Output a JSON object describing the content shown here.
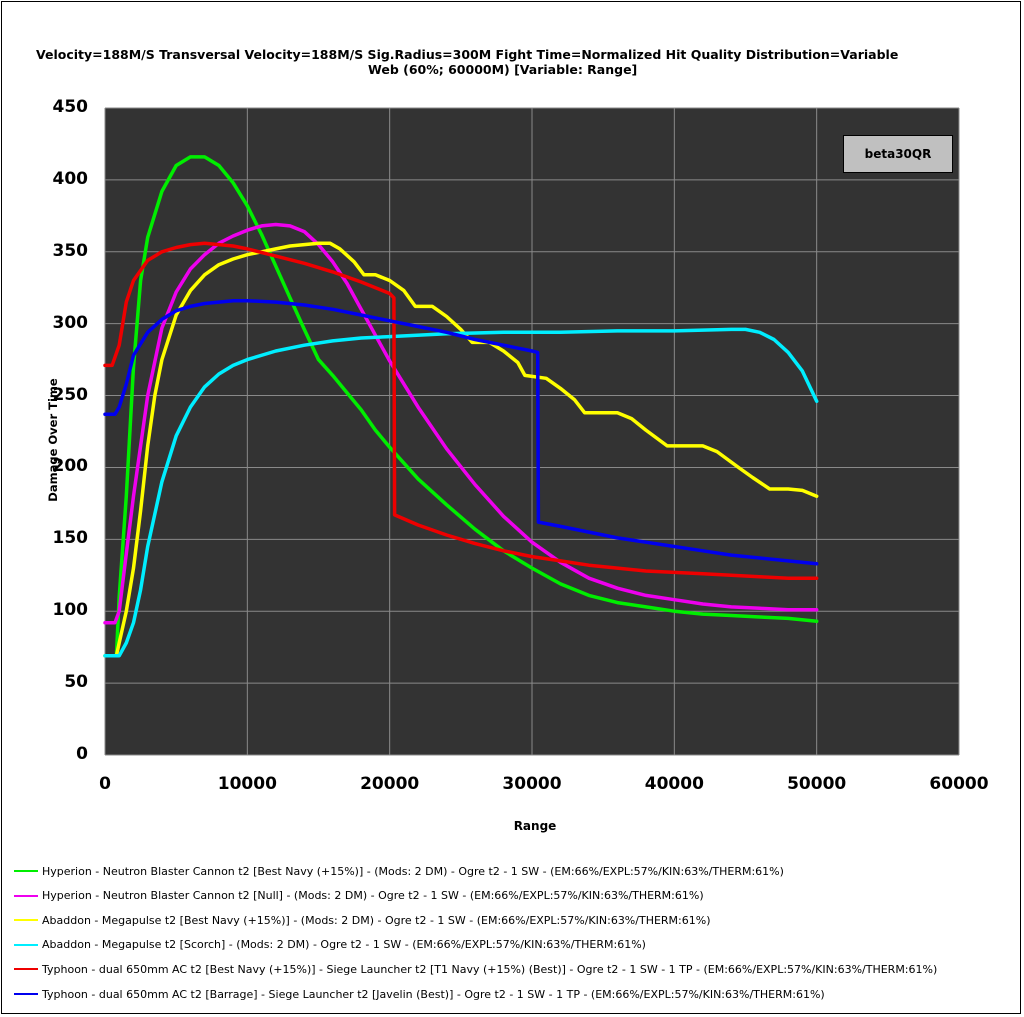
{
  "chart_data": {
    "type": "line",
    "subtitle_line1": "Velocity=188M/S     Transversal Velocity=188M/S     Sig.Radius=300M      Fight Time=Normalized      Hit Quality Distribution=Variable",
    "subtitle_line2": "Web (60%; 60000M)      [Variable: Range]",
    "xlabel": "Range",
    "ylabel": "Damage Over Time",
    "xlim": [
      0,
      60000
    ],
    "ylim": [
      0,
      450
    ],
    "x_ticks": [
      0,
      10000,
      20000,
      30000,
      40000,
      50000,
      60000
    ],
    "y_ticks": [
      0,
      50,
      100,
      150,
      200,
      250,
      300,
      350,
      400,
      450
    ],
    "annotation": "beta30QR",
    "grid": true,
    "legend_position": "bottom",
    "series": [
      {
        "name": "Hyperion - Neutron Blaster Cannon t2 [Best Navy (+15%)] - (Mods: 2 DM) - Ogre t2 - 1 SW - (EM:66%/EXPL:57%/KIN:63%/THERM:61%)",
        "color": "#00ee00",
        "points": [
          [
            0,
            69
          ],
          [
            800,
            69
          ],
          [
            1000,
            110
          ],
          [
            1500,
            180
          ],
          [
            2000,
            270
          ],
          [
            2500,
            330
          ],
          [
            3000,
            360
          ],
          [
            4000,
            392
          ],
          [
            5000,
            410
          ],
          [
            6000,
            416
          ],
          [
            7000,
            416
          ],
          [
            8000,
            410
          ],
          [
            9000,
            398
          ],
          [
            10000,
            382
          ],
          [
            11000,
            362
          ],
          [
            12000,
            340
          ],
          [
            13000,
            318
          ],
          [
            14000,
            296
          ],
          [
            15000,
            275
          ],
          [
            16000,
            264
          ],
          [
            17000,
            252
          ],
          [
            18000,
            240
          ],
          [
            19000,
            226
          ],
          [
            20000,
            214
          ],
          [
            22000,
            192
          ],
          [
            24000,
            174
          ],
          [
            26000,
            157
          ],
          [
            28000,
            142
          ],
          [
            30000,
            130
          ],
          [
            32000,
            119
          ],
          [
            34000,
            111
          ],
          [
            36000,
            106
          ],
          [
            38000,
            103
          ],
          [
            40000,
            100
          ],
          [
            42000,
            98
          ],
          [
            44000,
            97
          ],
          [
            46000,
            96
          ],
          [
            48000,
            95
          ],
          [
            50000,
            93
          ]
        ]
      },
      {
        "name": "Hyperion - Neutron Blaster Cannon t2 [Null] - (Mods: 2 DM) - Ogre t2 - 1 SW - (EM:66%/EXPL:57%/KIN:63%/THERM:61%)",
        "color": "#ee00ee",
        "points": [
          [
            0,
            92
          ],
          [
            700,
            92
          ],
          [
            1000,
            100
          ],
          [
            1500,
            140
          ],
          [
            2000,
            180
          ],
          [
            3000,
            250
          ],
          [
            4000,
            297
          ],
          [
            5000,
            322
          ],
          [
            6000,
            338
          ],
          [
            7000,
            348
          ],
          [
            8000,
            356
          ],
          [
            9000,
            361
          ],
          [
            10000,
            365
          ],
          [
            11000,
            368
          ],
          [
            12000,
            369
          ],
          [
            13000,
            368
          ],
          [
            14000,
            364
          ],
          [
            15000,
            355
          ],
          [
            16000,
            343
          ],
          [
            17000,
            328
          ],
          [
            18000,
            310
          ],
          [
            19000,
            292
          ],
          [
            20000,
            274
          ],
          [
            22000,
            242
          ],
          [
            24000,
            213
          ],
          [
            26000,
            188
          ],
          [
            28000,
            166
          ],
          [
            30000,
            148
          ],
          [
            32000,
            134
          ],
          [
            34000,
            123
          ],
          [
            36000,
            116
          ],
          [
            38000,
            111
          ],
          [
            40000,
            108
          ],
          [
            42000,
            105
          ],
          [
            44000,
            103
          ],
          [
            46000,
            102
          ],
          [
            48000,
            101
          ],
          [
            50000,
            101
          ]
        ]
      },
      {
        "name": "Abaddon - Megapulse t2 [Best Navy (+15%)] - (Mods: 2 DM) - Ogre t2 - 1 SW - (EM:66%/EXPL:57%/KIN:63%/THERM:61%)",
        "color": "#ffff00",
        "points": [
          [
            0,
            69
          ],
          [
            800,
            69
          ],
          [
            1000,
            78
          ],
          [
            1500,
            100
          ],
          [
            2000,
            130
          ],
          [
            2500,
            170
          ],
          [
            3000,
            215
          ],
          [
            3500,
            250
          ],
          [
            4000,
            275
          ],
          [
            5000,
            306
          ],
          [
            6000,
            323
          ],
          [
            7000,
            334
          ],
          [
            8000,
            341
          ],
          [
            9000,
            345
          ],
          [
            10000,
            348
          ],
          [
            11000,
            350
          ],
          [
            12000,
            352
          ],
          [
            13000,
            354
          ],
          [
            14000,
            355
          ],
          [
            15000,
            356
          ],
          [
            15800,
            356
          ],
          [
            16500,
            352
          ],
          [
            17500,
            343
          ],
          [
            18200,
            334
          ],
          [
            19000,
            334
          ],
          [
            20000,
            330
          ],
          [
            21000,
            323
          ],
          [
            21800,
            312
          ],
          [
            23000,
            312
          ],
          [
            24000,
            305
          ],
          [
            25000,
            296
          ],
          [
            25800,
            287
          ],
          [
            27000,
            287
          ],
          [
            28000,
            281
          ],
          [
            29000,
            273
          ],
          [
            29500,
            264
          ],
          [
            31000,
            262
          ],
          [
            32000,
            255
          ],
          [
            33000,
            247
          ],
          [
            33700,
            238
          ],
          [
            36000,
            238
          ],
          [
            37000,
            234
          ],
          [
            38000,
            226
          ],
          [
            39500,
            215
          ],
          [
            42000,
            215
          ],
          [
            43000,
            211
          ],
          [
            44500,
            200
          ],
          [
            45500,
            193
          ],
          [
            46700,
            185
          ],
          [
            48000,
            185
          ],
          [
            49000,
            184
          ],
          [
            50000,
            180
          ]
        ]
      },
      {
        "name": "Abaddon - Megapulse t2 [Scorch] - (Mods: 2 DM) - Ogre t2 - 1 SW - (EM:66%/EXPL:57%/KIN:63%/THERM:61%)",
        "color": "#00eeff",
        "points": [
          [
            0,
            69
          ],
          [
            1000,
            69
          ],
          [
            1500,
            78
          ],
          [
            2000,
            92
          ],
          [
            2500,
            115
          ],
          [
            3000,
            145
          ],
          [
            4000,
            190
          ],
          [
            5000,
            222
          ],
          [
            6000,
            242
          ],
          [
            7000,
            256
          ],
          [
            8000,
            265
          ],
          [
            9000,
            271
          ],
          [
            10000,
            275
          ],
          [
            12000,
            281
          ],
          [
            14000,
            285
          ],
          [
            16000,
            288
          ],
          [
            18000,
            290
          ],
          [
            20000,
            291
          ],
          [
            24000,
            293
          ],
          [
            28000,
            294
          ],
          [
            32000,
            294
          ],
          [
            36000,
            295
          ],
          [
            40000,
            295
          ],
          [
            44000,
            296
          ],
          [
            45000,
            296
          ],
          [
            46000,
            294
          ],
          [
            47000,
            289
          ],
          [
            48000,
            280
          ],
          [
            49000,
            267
          ],
          [
            50000,
            246
          ]
        ]
      },
      {
        "name": "Typhoon - dual 650mm AC t2 [Best Navy (+15%)] - Siege Launcher t2 [T1 Navy (+15%) (Best)] - Ogre t2 - 1 SW - 1 TP - (EM:66%/EXPL:57%/KIN:63%/THERM:61%)",
        "color": "#ee0000",
        "points": [
          [
            0,
            271
          ],
          [
            500,
            271
          ],
          [
            1000,
            285
          ],
          [
            1500,
            315
          ],
          [
            2000,
            330
          ],
          [
            3000,
            344
          ],
          [
            4000,
            350
          ],
          [
            5000,
            353
          ],
          [
            6000,
            355
          ],
          [
            7000,
            356
          ],
          [
            8000,
            355
          ],
          [
            9000,
            354
          ],
          [
            10000,
            352
          ],
          [
            12000,
            347
          ],
          [
            14000,
            342
          ],
          [
            16000,
            336
          ],
          [
            18000,
            329
          ],
          [
            20000,
            321
          ],
          [
            20300,
            318
          ],
          [
            20350,
            167
          ],
          [
            22000,
            160
          ],
          [
            24000,
            153
          ],
          [
            26000,
            147
          ],
          [
            28000,
            142
          ],
          [
            30000,
            138
          ],
          [
            32000,
            135
          ],
          [
            34000,
            132
          ],
          [
            36000,
            130
          ],
          [
            38000,
            128
          ],
          [
            40000,
            127
          ],
          [
            42000,
            126
          ],
          [
            44000,
            125
          ],
          [
            46000,
            124
          ],
          [
            48000,
            123
          ],
          [
            50000,
            123
          ]
        ]
      },
      {
        "name": "Typhoon - dual 650mm AC t2 [Barrage] - Siege Launcher t2 [Javelin (Best)] - Ogre t2 - 1 SW - 1 TP - (EM:66%/EXPL:57%/KIN:63%/THERM:61%)",
        "color": "#0000ee",
        "points": [
          [
            0,
            237
          ],
          [
            700,
            237
          ],
          [
            1000,
            242
          ],
          [
            1500,
            258
          ],
          [
            2000,
            278
          ],
          [
            3000,
            294
          ],
          [
            4000,
            303
          ],
          [
            5000,
            309
          ],
          [
            6000,
            312
          ],
          [
            7000,
            314
          ],
          [
            8000,
            315
          ],
          [
            9000,
            316
          ],
          [
            10000,
            316
          ],
          [
            12000,
            315
          ],
          [
            14000,
            313
          ],
          [
            16000,
            310
          ],
          [
            18000,
            306
          ],
          [
            20000,
            302
          ],
          [
            22000,
            298
          ],
          [
            24000,
            294
          ],
          [
            26000,
            289
          ],
          [
            28000,
            285
          ],
          [
            30000,
            281
          ],
          [
            30400,
            280
          ],
          [
            30450,
            162
          ],
          [
            32000,
            159
          ],
          [
            34000,
            155
          ],
          [
            36000,
            151
          ],
          [
            38000,
            148
          ],
          [
            40000,
            145
          ],
          [
            42000,
            142
          ],
          [
            44000,
            139
          ],
          [
            46000,
            137
          ],
          [
            48000,
            135
          ],
          [
            50000,
            133
          ]
        ]
      }
    ]
  }
}
